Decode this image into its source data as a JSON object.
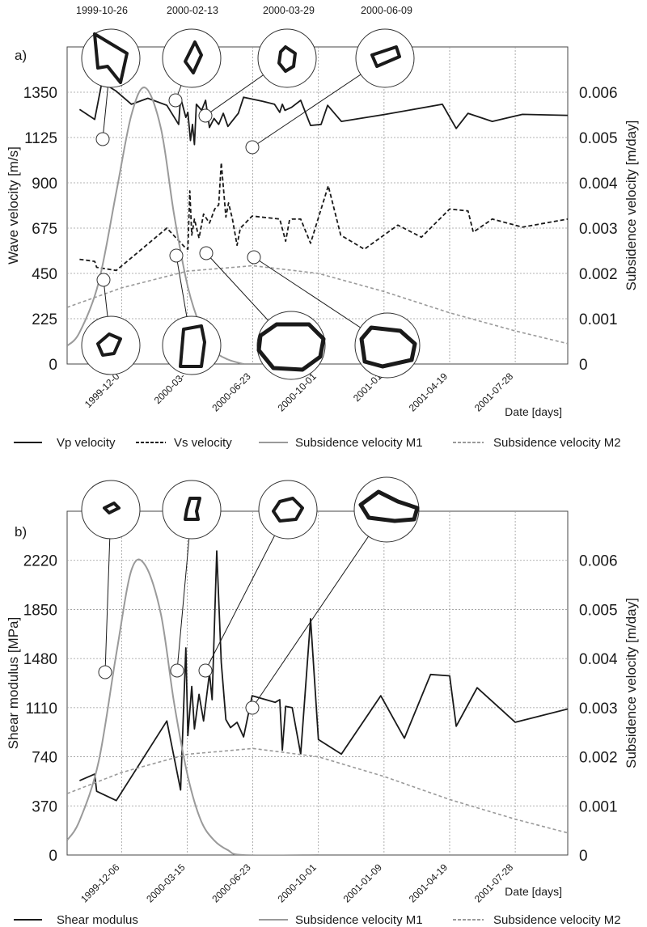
{
  "chart_data": [
    {
      "type": "line",
      "panel_label": "a)",
      "xlabel": "Date [days]",
      "ylabel": "Wave velocity [m/s]",
      "y2label": "Subsidence velocity [m/day]",
      "ylim": [
        0,
        1575
      ],
      "y2lim": [
        0,
        0.007
      ],
      "yticks": [
        "0",
        "225",
        "450",
        "675",
        "900",
        "1125",
        "1350"
      ],
      "y2ticks": [
        "0",
        "0.001",
        "0.002",
        "0.003",
        "0.004",
        "0.005",
        "0.006"
      ],
      "xlim": [
        "1999-09-14",
        "2001-10-16"
      ],
      "xticks": [
        "1999-12-06",
        "2000-03-15",
        "2000-06-23",
        "2000-10-01",
        "2001-01-09",
        "2001-04-19",
        "2001-07-28"
      ],
      "xtick_labels": [
        "1999-12-0",
        "2000-03-",
        "2000-06-23",
        "2000-10-01",
        "2001-01",
        "2001-04-19",
        "2001-07-28"
      ],
      "grid": true,
      "legend_position": "bottom",
      "top_dates": [
        "1999-10-26",
        "2000-02-13",
        "2000-03-29",
        "2000-06-09"
      ],
      "series": [
        {
          "name": "Vp velocity",
          "axis": "left",
          "style": "solid",
          "color": "#1a1a1a",
          "points": [
            [
              "1999-10-03",
              1265
            ],
            [
              "1999-10-26",
              1215
            ],
            [
              "1999-11-06",
              1400
            ],
            [
              "1999-11-28",
              1355
            ],
            [
              "1999-12-21",
              1290
            ],
            [
              "2000-01-15",
              1320
            ],
            [
              "2000-02-13",
              1285
            ],
            [
              "2000-03-02",
              1190
            ],
            [
              "2000-03-04",
              1280
            ],
            [
              "2000-03-06",
              1310
            ],
            [
              "2000-03-13",
              1225
            ],
            [
              "2000-03-16",
              1250
            ],
            [
              "2000-03-20",
              1110
            ],
            [
              "2000-03-23",
              1190
            ],
            [
              "2000-03-26",
              1090
            ],
            [
              "2000-03-29",
              1290
            ],
            [
              "2000-04-06",
              1260
            ],
            [
              "2000-04-12",
              1310
            ],
            [
              "2000-04-18",
              1175
            ],
            [
              "2000-04-25",
              1220
            ],
            [
              "2000-05-02",
              1190
            ],
            [
              "2000-05-09",
              1245
            ],
            [
              "2000-05-16",
              1180
            ],
            [
              "2000-06-01",
              1245
            ],
            [
              "2000-06-09",
              1325
            ],
            [
              "2000-07-08",
              1305
            ],
            [
              "2000-07-26",
              1290
            ],
            [
              "2000-08-03",
              1250
            ],
            [
              "2000-08-07",
              1290
            ],
            [
              "2000-08-11",
              1260
            ],
            [
              "2000-08-21",
              1275
            ],
            [
              "2000-09-04",
              1310
            ],
            [
              "2000-09-19",
              1185
            ],
            [
              "2000-10-05",
              1190
            ],
            [
              "2000-10-15",
              1285
            ],
            [
              "2000-11-05",
              1205
            ],
            [
              "2001-01-11",
              1240
            ],
            [
              "2001-04-08",
              1290
            ],
            [
              "2001-04-29",
              1170
            ],
            [
              "2001-05-17",
              1245
            ],
            [
              "2001-06-23",
              1205
            ],
            [
              "2001-08-08",
              1240
            ],
            [
              "2001-10-16",
              1235
            ]
          ]
        },
        {
          "name": "Vs velocity",
          "axis": "left",
          "style": "dashed",
          "color": "#1a1a1a",
          "points": [
            [
              "1999-10-03",
              520
            ],
            [
              "1999-10-26",
              510
            ],
            [
              "1999-10-29",
              480
            ],
            [
              "1999-11-28",
              465
            ],
            [
              "2000-02-13",
              675
            ],
            [
              "2000-03-13",
              575
            ],
            [
              "2000-03-16",
              570
            ],
            [
              "2000-03-19",
              860
            ],
            [
              "2000-03-22",
              640
            ],
            [
              "2000-03-26",
              720
            ],
            [
              "2000-04-02",
              625
            ],
            [
              "2000-04-09",
              745
            ],
            [
              "2000-04-18",
              700
            ],
            [
              "2000-04-26",
              770
            ],
            [
              "2000-05-02",
              790
            ],
            [
              "2000-05-06",
              1000
            ],
            [
              "2000-05-13",
              730
            ],
            [
              "2000-05-17",
              800
            ],
            [
              "2000-05-23",
              720
            ],
            [
              "2000-05-30",
              590
            ],
            [
              "2000-06-04",
              675
            ],
            [
              "2000-06-22",
              735
            ],
            [
              "2000-08-03",
              720
            ],
            [
              "2000-08-12",
              610
            ],
            [
              "2000-08-18",
              715
            ],
            [
              "2000-08-22",
              720
            ],
            [
              "2000-09-04",
              720
            ],
            [
              "2000-09-19",
              600
            ],
            [
              "2000-10-16",
              885
            ],
            [
              "2000-11-04",
              640
            ],
            [
              "2000-12-10",
              570
            ],
            [
              "2001-01-30",
              690
            ],
            [
              "2001-03-07",
              630
            ],
            [
              "2001-04-19",
              770
            ],
            [
              "2001-05-17",
              760
            ],
            [
              "2001-05-25",
              655
            ],
            [
              "2001-06-23",
              720
            ],
            [
              "2001-08-08",
              680
            ],
            [
              "2001-10-16",
              720
            ]
          ]
        },
        {
          "name": "Subsidence velocity M1",
          "axis": "right",
          "style": "solid",
          "color": "#9a9a9a",
          "points": [
            [
              "1999-09-14",
              0.0004
            ],
            [
              "1999-10-03",
              0.0007
            ],
            [
              "1999-11-01",
              0.0018
            ],
            [
              "1999-11-28",
              0.0038
            ],
            [
              "1999-12-21",
              0.0055
            ],
            [
              "2000-01-11",
              0.0061
            ],
            [
              "2000-02-04",
              0.0052
            ],
            [
              "2000-02-24",
              0.0033
            ],
            [
              "2000-03-16",
              0.0017
            ],
            [
              "2000-04-05",
              0.0008
            ],
            [
              "2000-04-25",
              0.0003
            ],
            [
              "2000-05-16",
              0.0001
            ],
            [
              "2000-06-09",
              0.0
            ]
          ]
        },
        {
          "name": "Subsidence velocity M2",
          "axis": "right",
          "style": "dashed",
          "color": "#9a9a9a",
          "points": [
            [
              "1999-09-14",
              0.00125
            ],
            [
              "1999-12-06",
              0.00168
            ],
            [
              "2000-03-15",
              0.00205
            ],
            [
              "2000-06-23",
              0.00217
            ],
            [
              "2000-10-01",
              0.002
            ],
            [
              "2001-01-09",
              0.0016
            ],
            [
              "2001-04-19",
              0.00113
            ],
            [
              "2001-07-28",
              0.00073
            ],
            [
              "2001-10-16",
              0.00045
            ]
          ]
        }
      ]
    },
    {
      "type": "line",
      "panel_label": "b)",
      "xlabel": "Date [days]",
      "ylabel": "Shear modulus [MPa]",
      "y2label": "Subsidence velocity [m/day]",
      "ylim": [
        0,
        2590
      ],
      "y2lim": [
        0,
        0.007
      ],
      "yticks": [
        "0",
        "370",
        "740",
        "1110",
        "1480",
        "1850",
        "2220"
      ],
      "y2ticks": [
        "0",
        "0.001",
        "0.002",
        "0.003",
        "0.004",
        "0.005",
        "0.006"
      ],
      "xlim": [
        "1999-09-14",
        "2001-10-16"
      ],
      "xticks": [
        "1999-12-06",
        "2000-03-15",
        "2000-06-23",
        "2000-10-01",
        "2001-01-09",
        "2001-04-19",
        "2001-07-28"
      ],
      "xtick_labels": [
        "1999-12-06",
        "2000-03-15",
        "2000-06-23",
        "2000-10-01",
        "2001-01-09",
        "2001-04-19",
        "2001-07-28"
      ],
      "grid": true,
      "legend_position": "bottom",
      "series": [
        {
          "name": "Shear modulus",
          "axis": "left",
          "style": "solid",
          "color": "#1a1a1a",
          "points": [
            [
              "1999-10-03",
              560
            ],
            [
              "1999-10-26",
              610
            ],
            [
              "1999-10-29",
              480
            ],
            [
              "1999-11-28",
              410
            ],
            [
              "2000-02-13",
              1010
            ],
            [
              "2000-03-05",
              490
            ],
            [
              "2000-03-13",
              1560
            ],
            [
              "2000-03-16",
              900
            ],
            [
              "2000-03-22",
              1270
            ],
            [
              "2000-03-26",
              950
            ],
            [
              "2000-04-02",
              1210
            ],
            [
              "2000-04-09",
              1010
            ],
            [
              "2000-04-18",
              1370
            ],
            [
              "2000-04-22",
              1170
            ],
            [
              "2000-04-29",
              2290
            ],
            [
              "2000-05-06",
              1450
            ],
            [
              "2000-05-13",
              1020
            ],
            [
              "2000-05-20",
              960
            ],
            [
              "2000-05-30",
              1000
            ],
            [
              "2000-06-09",
              890
            ],
            [
              "2000-06-22",
              1200
            ],
            [
              "2000-07-27",
              1150
            ],
            [
              "2000-08-03",
              1170
            ],
            [
              "2000-08-07",
              790
            ],
            [
              "2000-08-12",
              1120
            ],
            [
              "2000-08-22",
              1110
            ],
            [
              "2000-09-04",
              760
            ],
            [
              "2000-09-19",
              1780
            ],
            [
              "2000-10-01",
              870
            ],
            [
              "2000-11-05",
              760
            ],
            [
              "2001-01-04",
              1200
            ],
            [
              "2001-02-09",
              880
            ],
            [
              "2001-03-21",
              1360
            ],
            [
              "2001-04-19",
              1350
            ],
            [
              "2001-04-29",
              970
            ],
            [
              "2001-05-31",
              1260
            ],
            [
              "2001-07-28",
              1000
            ],
            [
              "2001-10-16",
              1100
            ]
          ]
        },
        {
          "name": "Subsidence velocity M1",
          "axis": "right",
          "style": "solid",
          "color": "#9a9a9a",
          "points": [
            [
              "1999-09-14",
              0.0003
            ],
            [
              "1999-10-03",
              0.0007
            ],
            [
              "1999-11-01",
              0.0019
            ],
            [
              "1999-11-28",
              0.0041
            ],
            [
              "1999-12-21",
              0.0058
            ],
            [
              "2000-01-11",
              0.0059
            ],
            [
              "2000-02-04",
              0.0049
            ],
            [
              "2000-02-24",
              0.0031
            ],
            [
              "2000-03-16",
              0.0016
            ],
            [
              "2000-04-05",
              0.0007
            ],
            [
              "2000-04-25",
              0.0003
            ],
            [
              "2000-05-16",
              0.0001
            ],
            [
              "2000-06-09",
              0.0
            ],
            [
              "2000-10-01",
              0.0
            ]
          ]
        },
        {
          "name": "Subsidence velocity M2",
          "axis": "right",
          "style": "dashed",
          "color": "#9a9a9a",
          "points": [
            [
              "1999-09-14",
              0.00125
            ],
            [
              "1999-12-06",
              0.00168
            ],
            [
              "2000-03-15",
              0.00205
            ],
            [
              "2000-06-23",
              0.00217
            ],
            [
              "2000-10-01",
              0.002
            ],
            [
              "2001-01-09",
              0.0016
            ],
            [
              "2001-04-19",
              0.00113
            ],
            [
              "2001-07-28",
              0.00073
            ],
            [
              "2001-10-16",
              0.00045
            ]
          ]
        }
      ]
    }
  ]
}
